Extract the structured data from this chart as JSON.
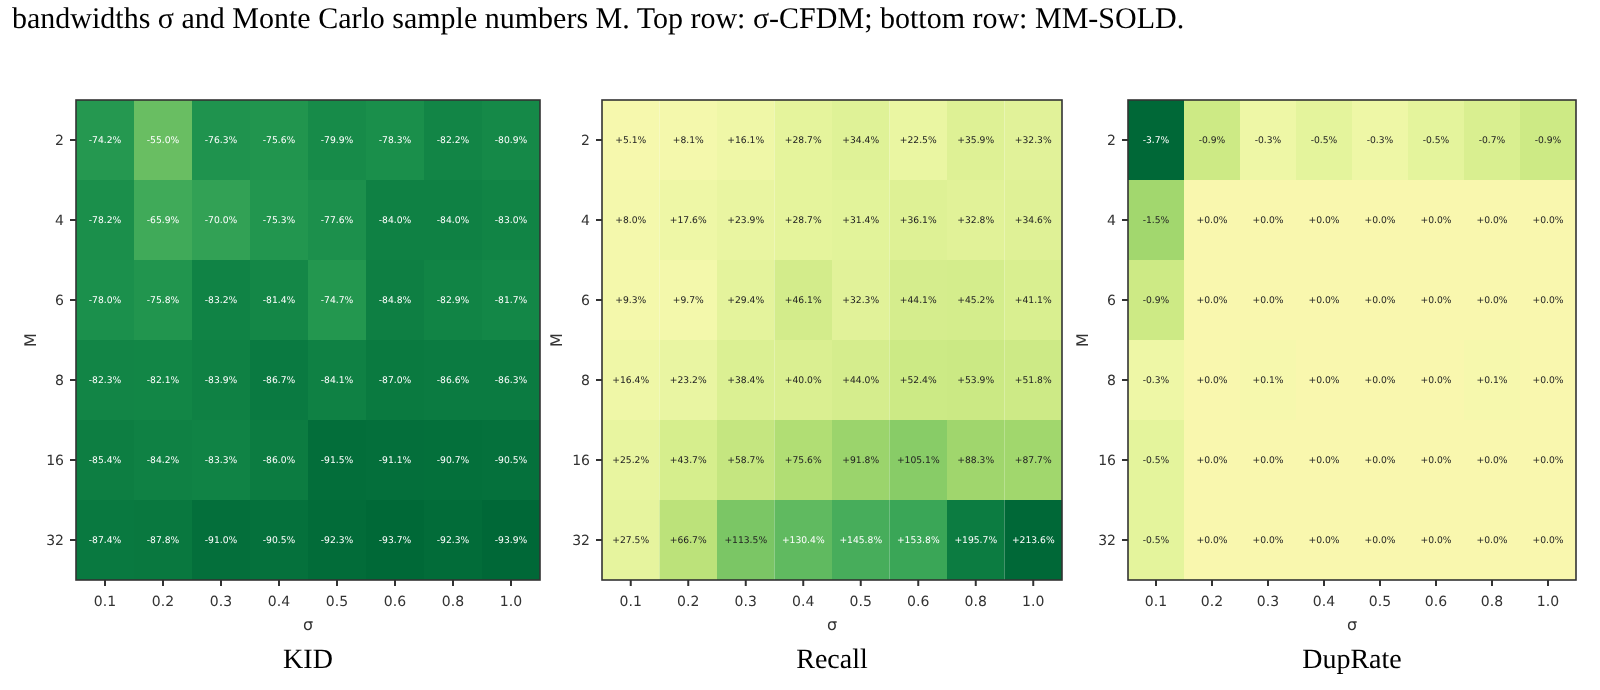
{
  "chart_data": [
    {
      "type": "heatmap",
      "title": "KID",
      "xlabel": "σ",
      "ylabel": "M",
      "annotations": [
        "bandwidths σ and Monte Carlo sample numbers M. Top row: σ-CFDM; bottom row: MM-SOLD."
      ],
      "categories": [
        "0.1",
        "0.2",
        "0.3",
        "0.4",
        "0.5",
        "0.6",
        "0.8",
        "1.0"
      ],
      "y_categories": [
        "2",
        "4",
        "6",
        "8",
        "16",
        "32"
      ],
      "cells": [
        [
          -74.2,
          -55.0,
          -76.3,
          -75.6,
          -79.9,
          -78.3,
          -82.2,
          -80.9
        ],
        [
          -78.2,
          -65.9,
          -70.0,
          -75.3,
          -77.6,
          -84.0,
          -84.0,
          -83.0
        ],
        [
          -78.0,
          -75.8,
          -83.2,
          -81.4,
          -74.7,
          -84.8,
          -82.9,
          -81.7
        ],
        [
          -82.3,
          -82.1,
          -83.9,
          -86.7,
          -84.1,
          -87.0,
          -86.6,
          -86.3
        ],
        [
          -85.4,
          -84.2,
          -83.3,
          -86.0,
          -91.5,
          -91.1,
          -90.7,
          -90.5
        ],
        [
          -87.4,
          -87.8,
          -91.0,
          -90.5,
          -92.3,
          -93.7,
          -92.3,
          -93.9
        ]
      ],
      "cell_labels": [
        [
          "-74.2%",
          "-55.0%",
          "-76.3%",
          "-75.6%",
          "-79.9%",
          "-78.3%",
          "-82.2%",
          "-80.9%"
        ],
        [
          "-78.2%",
          "-65.9%",
          "-70.0%",
          "-75.3%",
          "-77.6%",
          "-84.0%",
          "-84.0%",
          "-83.0%"
        ],
        [
          "-78.0%",
          "-75.8%",
          "-83.2%",
          "-81.4%",
          "-74.7%",
          "-84.8%",
          "-82.9%",
          "-81.7%"
        ],
        [
          "-82.3%",
          "-82.1%",
          "-83.9%",
          "-86.7%",
          "-84.1%",
          "-87.0%",
          "-86.6%",
          "-86.3%"
        ],
        [
          "-85.4%",
          "-84.2%",
          "-83.3%",
          "-86.0%",
          "-91.5%",
          "-91.1%",
          "-90.7%",
          "-90.5%"
        ],
        [
          "-87.4%",
          "-87.8%",
          "-91.0%",
          "-90.5%",
          "-92.3%",
          "-93.7%",
          "-92.3%",
          "-93.9%"
        ]
      ]
    },
    {
      "type": "heatmap",
      "title": "Recall",
      "xlabel": "σ",
      "ylabel": "M",
      "categories": [
        "0.1",
        "0.2",
        "0.3",
        "0.4",
        "0.5",
        "0.6",
        "0.8",
        "1.0"
      ],
      "y_categories": [
        "2",
        "4",
        "6",
        "8",
        "16",
        "32"
      ],
      "cells": [
        [
          5.1,
          8.1,
          16.1,
          28.7,
          34.4,
          22.5,
          35.9,
          32.3
        ],
        [
          8.0,
          17.6,
          23.9,
          28.7,
          31.4,
          36.1,
          32.8,
          34.6
        ],
        [
          9.3,
          9.7,
          29.4,
          46.1,
          32.3,
          44.1,
          45.2,
          41.1
        ],
        [
          16.4,
          23.2,
          38.4,
          40.0,
          44.0,
          52.4,
          53.9,
          51.8
        ],
        [
          25.2,
          43.7,
          58.7,
          75.6,
          91.8,
          105.1,
          88.3,
          87.7
        ],
        [
          27.5,
          66.7,
          113.5,
          130.4,
          145.8,
          153.8,
          195.7,
          213.6
        ]
      ],
      "cell_labels": [
        [
          "+5.1%",
          "+8.1%",
          "+16.1%",
          "+28.7%",
          "+34.4%",
          "+22.5%",
          "+35.9%",
          "+32.3%"
        ],
        [
          "+8.0%",
          "+17.6%",
          "+23.9%",
          "+28.7%",
          "+31.4%",
          "+36.1%",
          "+32.8%",
          "+34.6%"
        ],
        [
          "+9.3%",
          "+9.7%",
          "+29.4%",
          "+46.1%",
          "+32.3%",
          "+44.1%",
          "+45.2%",
          "+41.1%"
        ],
        [
          "+16.4%",
          "+23.2%",
          "+38.4%",
          "+40.0%",
          "+44.0%",
          "+52.4%",
          "+53.9%",
          "+51.8%"
        ],
        [
          "+25.2%",
          "+43.7%",
          "+58.7%",
          "+75.6%",
          "+91.8%",
          "+105.1%",
          "+88.3%",
          "+87.7%"
        ],
        [
          "+27.5%",
          "+66.7%",
          "+113.5%",
          "+130.4%",
          "+145.8%",
          "+153.8%",
          "+195.7%",
          "+213.6%"
        ]
      ]
    },
    {
      "type": "heatmap",
      "title": "DupRate",
      "xlabel": "σ",
      "ylabel": "M",
      "categories": [
        "0.1",
        "0.2",
        "0.3",
        "0.4",
        "0.5",
        "0.6",
        "0.8",
        "1.0"
      ],
      "y_categories": [
        "2",
        "4",
        "6",
        "8",
        "16",
        "32"
      ],
      "cells": [
        [
          -3.7,
          -0.9,
          -0.3,
          -0.5,
          -0.3,
          -0.5,
          -0.7,
          -0.9
        ],
        [
          -1.5,
          0.0,
          0.0,
          0.0,
          0.0,
          0.0,
          0.0,
          0.0
        ],
        [
          -0.9,
          0.0,
          0.0,
          0.0,
          0.0,
          0.0,
          0.0,
          0.0
        ],
        [
          -0.3,
          0.0,
          0.1,
          0.0,
          0.0,
          0.0,
          0.1,
          0.0
        ],
        [
          -0.5,
          0.0,
          0.0,
          0.0,
          0.0,
          0.0,
          0.0,
          0.0
        ],
        [
          -0.5,
          0.0,
          0.0,
          0.0,
          0.0,
          0.0,
          0.0,
          0.0
        ]
      ],
      "cell_labels": [
        [
          "-3.7%",
          "-0.9%",
          "-0.3%",
          "-0.5%",
          "-0.3%",
          "-0.5%",
          "-0.7%",
          "-0.9%"
        ],
        [
          "-1.5%",
          "+0.0%",
          "+0.0%",
          "+0.0%",
          "+0.0%",
          "+0.0%",
          "+0.0%",
          "+0.0%"
        ],
        [
          "-0.9%",
          "+0.0%",
          "+0.0%",
          "+0.0%",
          "+0.0%",
          "+0.0%",
          "+0.0%",
          "+0.0%"
        ],
        [
          "-0.3%",
          "+0.0%",
          "+0.1%",
          "+0.0%",
          "+0.0%",
          "+0.0%",
          "+0.1%",
          "+0.0%"
        ],
        [
          "-0.5%",
          "+0.0%",
          "+0.0%",
          "+0.0%",
          "+0.0%",
          "+0.0%",
          "+0.0%",
          "+0.0%"
        ],
        [
          "-0.5%",
          "+0.0%",
          "+0.0%",
          "+0.0%",
          "+0.0%",
          "+0.0%",
          "+0.0%",
          "+0.0%"
        ]
      ]
    }
  ]
}
